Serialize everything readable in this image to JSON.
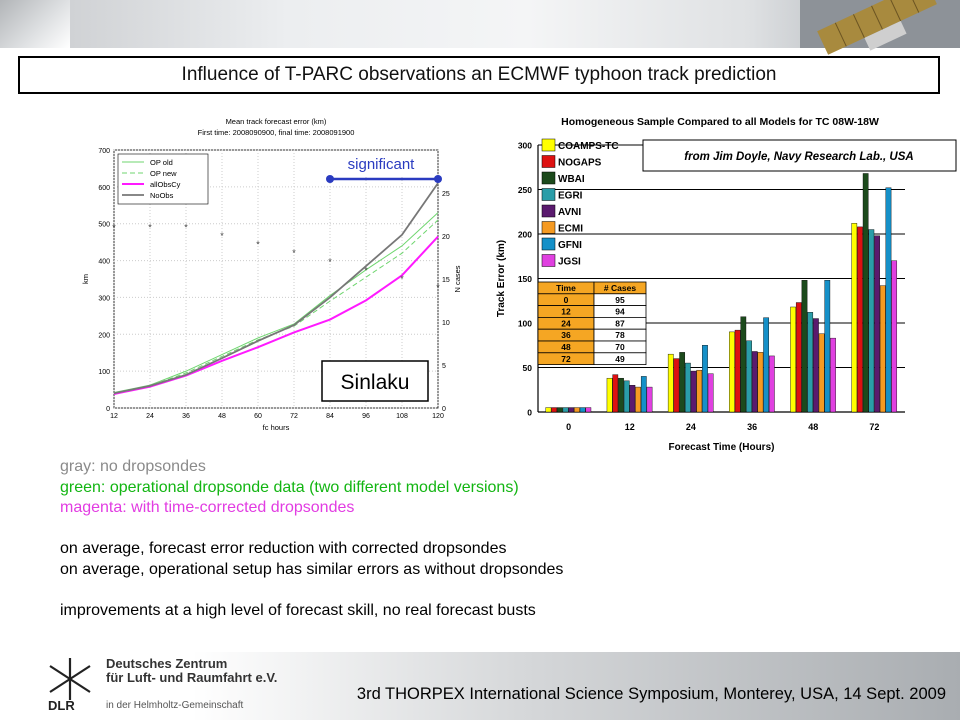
{
  "page": {
    "title": "Influence of T-PARC observations an ECMWF typhoon track prediction",
    "notes": [
      {
        "text": "gray: no dropsondes",
        "color": "#8a8a8a"
      },
      {
        "text": "green: operational dropsonde data (two different model versions)",
        "color": "#12b512"
      },
      {
        "text": "magenta: with time-corrected dropsondes",
        "color": "#e23ce2"
      },
      {
        "text": "",
        "color": "#000000"
      },
      {
        "text": "on average, forecast error reduction with corrected dropsondes",
        "color": "#000000"
      },
      {
        "text": "on average, operational setup has similar errors as without dropsondes",
        "color": "#000000"
      },
      {
        "text": "",
        "color": "#000000"
      },
      {
        "text": "improvements at a high level of forecast skill, no real forecast busts",
        "color": "#000000"
      }
    ],
    "footer": "3rd THORPEX International Science Symposium, Monterey, USA, 14 Sept. 2009",
    "dlr": {
      "logo_text": "DLR",
      "line1": "Deutsches Zentrum",
      "line2": "für Luft- und Raumfahrt e.V.",
      "line3": "in der Helmholtz-Gemeinschaft"
    }
  },
  "chart_data": [
    {
      "type": "line",
      "title": "Mean track forecast error (km)",
      "subtitle": "First time: 2008090900, final time: 2008091900",
      "xlabel": "fc hours",
      "ylabel": "km",
      "y2label": "N cases",
      "x": [
        12,
        24,
        36,
        48,
        60,
        72,
        84,
        96,
        108,
        120
      ],
      "xlim": [
        12,
        120
      ],
      "ylim": [
        0,
        700
      ],
      "y2lim": [
        0,
        30
      ],
      "yticks": [
        0,
        100,
        200,
        300,
        400,
        500,
        600,
        700
      ],
      "y2ticks": [
        0,
        5,
        10,
        15,
        20,
        25
      ],
      "series": [
        {
          "name": "OP old",
          "color": "#6fd66f",
          "dash": "",
          "width": 1,
          "values": [
            42,
            62,
            100,
            145,
            190,
            228,
            305,
            375,
            440,
            530
          ]
        },
        {
          "name": "OP new",
          "color": "#6fd66f",
          "dash": "5,3",
          "width": 1,
          "values": [
            40,
            60,
            95,
            140,
            185,
            222,
            290,
            355,
            420,
            510
          ]
        },
        {
          "name": "allObsCy",
          "color": "#ff1aff",
          "dash": "",
          "width": 2,
          "values": [
            38,
            58,
            88,
            128,
            165,
            205,
            240,
            292,
            360,
            465
          ]
        },
        {
          "name": "NoObs",
          "color": "#777777",
          "dash": "",
          "width": 1.8,
          "values": [
            40,
            60,
            90,
            135,
            182,
            225,
            300,
            385,
            470,
            610
          ]
        }
      ],
      "ncases": [
        21,
        21,
        21,
        20,
        19,
        18,
        17,
        16,
        15,
        14
      ],
      "annotation_label": "significant",
      "annotation_range": [
        84,
        120
      ],
      "storm_label": "Sinlaku"
    },
    {
      "type": "bar",
      "title": "Homogeneous Sample Compared to all Models for TC 08W-18W",
      "xlabel": "Forecast Time (Hours)",
      "ylabel": "Track Error (km)",
      "categories": [
        "0",
        "12",
        "24",
        "36",
        "48",
        "72"
      ],
      "ylim": [
        0,
        300
      ],
      "yticks": [
        0,
        50,
        100,
        150,
        200,
        250,
        300
      ],
      "series": [
        {
          "name": "COAMPS-TC",
          "color": "#ffff00",
          "values": [
            5,
            38,
            65,
            90,
            118,
            212
          ]
        },
        {
          "name": "NOGAPS",
          "color": "#dd1111",
          "values": [
            5,
            42,
            60,
            92,
            123,
            208
          ]
        },
        {
          "name": "WBAI",
          "color": "#1c4a1c",
          "values": [
            5,
            38,
            67,
            107,
            148,
            268
          ]
        },
        {
          "name": "EGRI",
          "color": "#2a9da8",
          "values": [
            5,
            35,
            55,
            80,
            112,
            205
          ]
        },
        {
          "name": "AVNI",
          "color": "#5a1a6e",
          "values": [
            5,
            30,
            46,
            68,
            105,
            198
          ]
        },
        {
          "name": "ECMI",
          "color": "#f59a22",
          "values": [
            5,
            28,
            47,
            67,
            88,
            142
          ]
        },
        {
          "name": "GFNI",
          "color": "#1590c8",
          "values": [
            5,
            40,
            75,
            106,
            148,
            252
          ]
        },
        {
          "name": "JGSI",
          "color": "#e040e0",
          "values": [
            5,
            28,
            43,
            63,
            83,
            170
          ]
        }
      ],
      "cases_table": {
        "headers": [
          "Time",
          "# Cases"
        ],
        "rows": [
          [
            "0",
            "95"
          ],
          [
            "12",
            "94"
          ],
          [
            "24",
            "87"
          ],
          [
            "36",
            "78"
          ],
          [
            "48",
            "70"
          ],
          [
            "72",
            "49"
          ]
        ]
      },
      "source_note": "from Jim Doyle, Navy Research Lab., USA"
    }
  ]
}
